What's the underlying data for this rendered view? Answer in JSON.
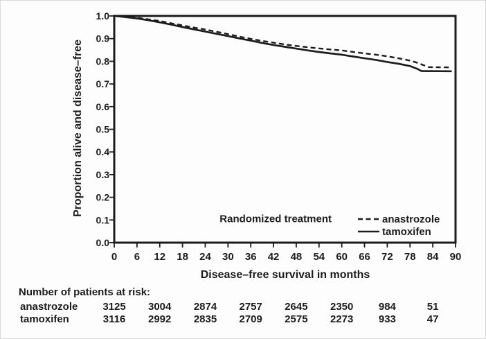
{
  "figure": {
    "ink_color": "#1c1c1c",
    "background": "#fdfdfd"
  },
  "chart_data": {
    "type": "line",
    "title": "",
    "xlabel": "Disease–free survival in months",
    "ylabel": "Proportion alive and disease–free",
    "xlim": [
      0,
      90
    ],
    "ylim": [
      0.0,
      1.0
    ],
    "x_ticks": [
      0,
      6,
      12,
      18,
      24,
      30,
      36,
      42,
      48,
      54,
      60,
      66,
      72,
      78,
      84,
      90
    ],
    "y_tick_values": [
      1.0,
      0.9,
      0.8,
      0.7,
      0.6,
      0.5,
      0.4,
      0.3,
      0.2,
      0.1,
      0.0
    ],
    "y_tick_labels": [
      "1.0",
      "0.9",
      "0.8",
      "0.7",
      "0.6",
      "0.5",
      "0.4",
      "0.3",
      "0.2",
      "0.1",
      "0.0"
    ],
    "grid": false,
    "legend": {
      "title": "Randomized treatment",
      "position": "bottom-right-inside",
      "entries": [
        {
          "label": "anastrozole",
          "line_style": "dashed"
        },
        {
          "label": "tamoxifen",
          "line_style": "solid"
        }
      ]
    },
    "series": [
      {
        "name": "anastrozole",
        "line_style": "dashed",
        "points": [
          [
            0,
            1.0
          ],
          [
            2,
            0.998
          ],
          [
            4,
            0.995
          ],
          [
            6,
            0.992
          ],
          [
            9,
            0.985
          ],
          [
            12,
            0.978
          ],
          [
            15,
            0.968
          ],
          [
            18,
            0.958
          ],
          [
            21,
            0.949
          ],
          [
            24,
            0.94
          ],
          [
            27,
            0.93
          ],
          [
            30,
            0.92
          ],
          [
            33,
            0.909
          ],
          [
            36,
            0.899
          ],
          [
            39,
            0.89
          ],
          [
            42,
            0.882
          ],
          [
            45,
            0.874
          ],
          [
            48,
            0.868
          ],
          [
            51,
            0.862
          ],
          [
            54,
            0.857
          ],
          [
            57,
            0.852
          ],
          [
            60,
            0.848
          ],
          [
            63,
            0.841
          ],
          [
            66,
            0.835
          ],
          [
            69,
            0.829
          ],
          [
            72,
            0.822
          ],
          [
            75,
            0.813
          ],
          [
            78,
            0.803
          ],
          [
            80,
            0.793
          ],
          [
            82,
            0.78
          ],
          [
            83,
            0.774
          ],
          [
            89,
            0.773
          ]
        ]
      },
      {
        "name": "tamoxifen",
        "line_style": "solid",
        "points": [
          [
            0,
            1.0
          ],
          [
            2,
            0.997
          ],
          [
            4,
            0.993
          ],
          [
            6,
            0.989
          ],
          [
            9,
            0.981
          ],
          [
            12,
            0.972
          ],
          [
            15,
            0.962
          ],
          [
            18,
            0.951
          ],
          [
            21,
            0.941
          ],
          [
            24,
            0.931
          ],
          [
            27,
            0.921
          ],
          [
            30,
            0.911
          ],
          [
            33,
            0.901
          ],
          [
            36,
            0.891
          ],
          [
            39,
            0.881
          ],
          [
            42,
            0.872
          ],
          [
            45,
            0.864
          ],
          [
            48,
            0.856
          ],
          [
            51,
            0.848
          ],
          [
            54,
            0.841
          ],
          [
            57,
            0.835
          ],
          [
            60,
            0.829
          ],
          [
            63,
            0.821
          ],
          [
            66,
            0.813
          ],
          [
            69,
            0.806
          ],
          [
            72,
            0.797
          ],
          [
            75,
            0.789
          ],
          [
            78,
            0.779
          ],
          [
            80,
            0.766
          ],
          [
            81,
            0.757
          ],
          [
            89,
            0.756
          ]
        ]
      }
    ]
  },
  "at_risk": {
    "title": "Number of patients at risk:",
    "months": [
      0,
      12,
      24,
      36,
      48,
      60,
      72,
      84
    ],
    "rows": [
      {
        "label": "anastrozole",
        "values": [
          "3125",
          "3004",
          "2874",
          "2757",
          "2645",
          "2350",
          "984",
          "51"
        ]
      },
      {
        "label": "tamoxifen",
        "values": [
          "3116",
          "2992",
          "2835",
          "2709",
          "2575",
          "2273",
          "933",
          "47"
        ]
      }
    ]
  }
}
